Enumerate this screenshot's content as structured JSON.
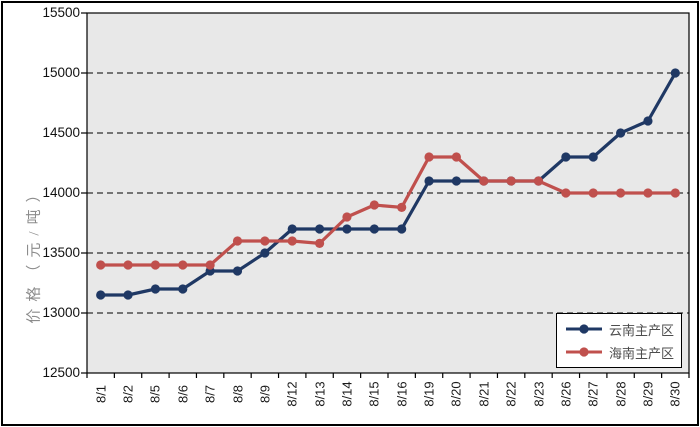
{
  "chart_data": {
    "type": "line",
    "title": "",
    "xlabel": "",
    "ylabel": "价格（元/吨）",
    "ylim": [
      12500,
      15500
    ],
    "yticks": [
      12500,
      13000,
      13500,
      14000,
      14500,
      15000,
      15500
    ],
    "grid": "horizontal-dashed-black",
    "plot_bg_color": "#E8E8E8",
    "legend_position": "inside-bottom-right",
    "categories": [
      "8/1",
      "8/2",
      "8/5",
      "8/6",
      "8/7",
      "8/8",
      "8/9",
      "8/12",
      "8/13",
      "8/14",
      "8/15",
      "8/16",
      "8/19",
      "8/20",
      "8/21",
      "8/22",
      "8/23",
      "8/26",
      "8/27",
      "8/28",
      "8/29",
      "8/30"
    ],
    "series": [
      {
        "name": "云南主产区",
        "color": "#1F3864",
        "marker": "circle",
        "values": [
          13150,
          13150,
          13200,
          13200,
          13350,
          13350,
          13500,
          13700,
          13700,
          13700,
          13700,
          13700,
          14100,
          14100,
          14100,
          14100,
          14100,
          14300,
          14300,
          14500,
          14600,
          15000
        ]
      },
      {
        "name": "海南主产区",
        "color": "#C0504D",
        "marker": "circle",
        "values": [
          13400,
          13400,
          13400,
          13400,
          13400,
          13600,
          13600,
          13600,
          13580,
          13800,
          13900,
          13880,
          14300,
          14300,
          14100,
          14100,
          14100,
          14000,
          14000,
          14000,
          14000,
          14000
        ]
      }
    ]
  }
}
